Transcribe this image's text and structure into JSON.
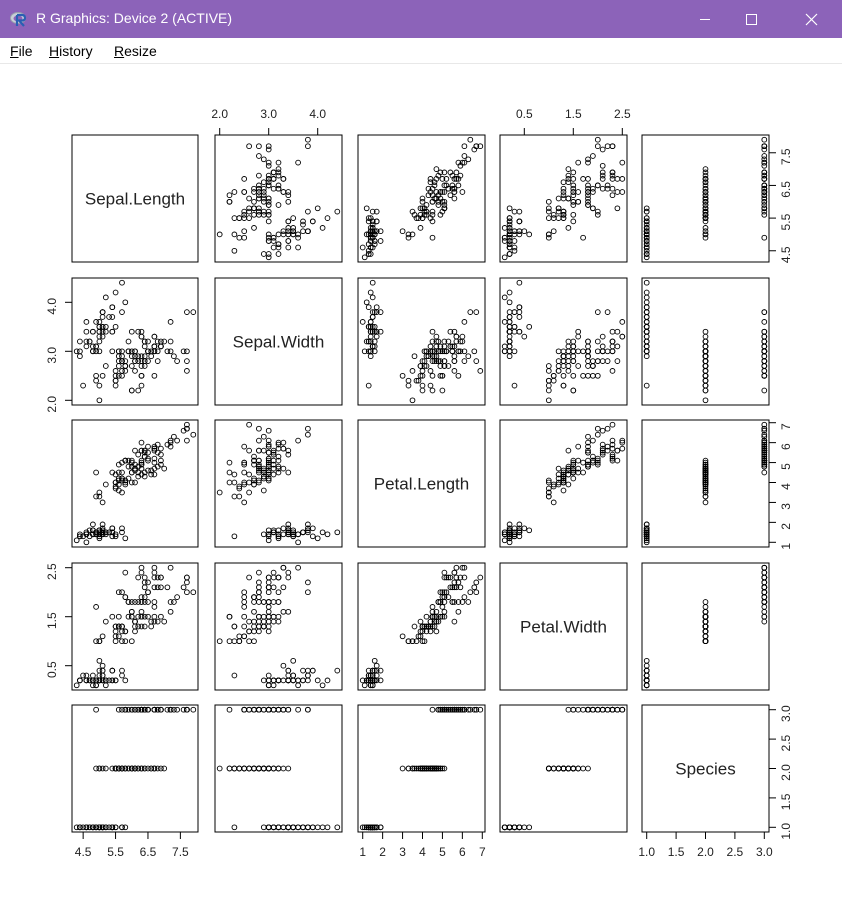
{
  "window": {
    "title": "R Graphics: Device 2 (ACTIVE)",
    "icon": "r-logo-icon",
    "controls": [
      "minimize-icon",
      "maximize-icon",
      "close-icon"
    ],
    "accent": "#8c63b9"
  },
  "menu": [
    {
      "accel": "F",
      "rest": "ile"
    },
    {
      "accel": "H",
      "rest": "istory"
    },
    {
      "accel": "R",
      "rest": "esize"
    }
  ],
  "chart_data": {
    "type": "scatter",
    "kind": "scatterplot matrix",
    "variables": [
      "Sepal.Length",
      "Sepal.Width",
      "Petal.Length",
      "Petal.Width",
      "Species"
    ],
    "ticks": {
      "Sepal.Length": [
        "4.5",
        "5.5",
        "6.5",
        "7.5"
      ],
      "Sepal.Width": [
        "2.0",
        "3.0",
        "4.0"
      ],
      "Petal.Length": [
        "1",
        "2",
        "3",
        "4",
        "5",
        "6",
        "7"
      ],
      "Petal.Width": [
        "0.5",
        "1.5",
        "2.5"
      ],
      "Species": [
        "1.0",
        "1.5",
        "2.0",
        "2.5",
        "3.0"
      ]
    },
    "ranges": {
      "Sepal.Length": [
        4.3,
        7.9
      ],
      "Sepal.Width": [
        2.0,
        4.4
      ],
      "Petal.Length": [
        1.0,
        6.9
      ],
      "Petal.Width": [
        0.1,
        2.5
      ],
      "Species": [
        1,
        3
      ]
    },
    "point_symbol": "open circle",
    "observations": [
      [
        5.1,
        3.5,
        1.4,
        0.2,
        1
      ],
      [
        4.9,
        3.0,
        1.4,
        0.2,
        1
      ],
      [
        4.7,
        3.2,
        1.3,
        0.2,
        1
      ],
      [
        4.6,
        3.1,
        1.5,
        0.2,
        1
      ],
      [
        5.0,
        3.6,
        1.4,
        0.2,
        1
      ],
      [
        5.4,
        3.9,
        1.7,
        0.4,
        1
      ],
      [
        4.6,
        3.4,
        1.4,
        0.3,
        1
      ],
      [
        5.0,
        3.4,
        1.5,
        0.2,
        1
      ],
      [
        4.4,
        2.9,
        1.4,
        0.2,
        1
      ],
      [
        4.9,
        3.1,
        1.5,
        0.1,
        1
      ],
      [
        5.4,
        3.7,
        1.5,
        0.2,
        1
      ],
      [
        4.8,
        3.4,
        1.6,
        0.2,
        1
      ],
      [
        4.8,
        3.0,
        1.4,
        0.1,
        1
      ],
      [
        4.3,
        3.0,
        1.1,
        0.1,
        1
      ],
      [
        5.8,
        4.0,
        1.2,
        0.2,
        1
      ],
      [
        5.7,
        4.4,
        1.5,
        0.4,
        1
      ],
      [
        5.4,
        3.9,
        1.3,
        0.4,
        1
      ],
      [
        5.1,
        3.5,
        1.4,
        0.3,
        1
      ],
      [
        5.7,
        3.8,
        1.7,
        0.3,
        1
      ],
      [
        5.1,
        3.8,
        1.5,
        0.3,
        1
      ],
      [
        5.4,
        3.4,
        1.7,
        0.2,
        1
      ],
      [
        5.1,
        3.7,
        1.5,
        0.4,
        1
      ],
      [
        4.6,
        3.6,
        1.0,
        0.2,
        1
      ],
      [
        5.1,
        3.3,
        1.7,
        0.5,
        1
      ],
      [
        4.8,
        3.4,
        1.9,
        0.2,
        1
      ],
      [
        5.0,
        3.0,
        1.6,
        0.2,
        1
      ],
      [
        5.0,
        3.4,
        1.6,
        0.4,
        1
      ],
      [
        5.2,
        3.5,
        1.5,
        0.2,
        1
      ],
      [
        5.2,
        3.4,
        1.4,
        0.2,
        1
      ],
      [
        4.7,
        3.2,
        1.6,
        0.2,
        1
      ],
      [
        4.8,
        3.1,
        1.6,
        0.2,
        1
      ],
      [
        5.4,
        3.4,
        1.5,
        0.4,
        1
      ],
      [
        5.2,
        4.1,
        1.5,
        0.1,
        1
      ],
      [
        5.5,
        4.2,
        1.4,
        0.2,
        1
      ],
      [
        4.9,
        3.1,
        1.5,
        0.2,
        1
      ],
      [
        5.0,
        3.2,
        1.2,
        0.2,
        1
      ],
      [
        5.5,
        3.5,
        1.3,
        0.2,
        1
      ],
      [
        4.9,
        3.6,
        1.4,
        0.1,
        1
      ],
      [
        4.4,
        3.0,
        1.3,
        0.2,
        1
      ],
      [
        5.1,
        3.4,
        1.5,
        0.2,
        1
      ],
      [
        5.0,
        3.5,
        1.3,
        0.3,
        1
      ],
      [
        4.5,
        2.3,
        1.3,
        0.3,
        1
      ],
      [
        4.4,
        3.2,
        1.3,
        0.2,
        1
      ],
      [
        5.0,
        3.5,
        1.6,
        0.6,
        1
      ],
      [
        5.1,
        3.8,
        1.9,
        0.4,
        1
      ],
      [
        4.8,
        3.0,
        1.4,
        0.3,
        1
      ],
      [
        5.1,
        3.8,
        1.6,
        0.2,
        1
      ],
      [
        4.6,
        3.2,
        1.4,
        0.2,
        1
      ],
      [
        5.3,
        3.7,
        1.5,
        0.2,
        1
      ],
      [
        5.0,
        3.3,
        1.4,
        0.2,
        1
      ],
      [
        7.0,
        3.2,
        4.7,
        1.4,
        2
      ],
      [
        6.4,
        3.2,
        4.5,
        1.5,
        2
      ],
      [
        6.9,
        3.1,
        4.9,
        1.5,
        2
      ],
      [
        5.5,
        2.3,
        4.0,
        1.3,
        2
      ],
      [
        6.5,
        2.8,
        4.6,
        1.5,
        2
      ],
      [
        5.7,
        2.8,
        4.5,
        1.3,
        2
      ],
      [
        6.3,
        3.3,
        4.7,
        1.6,
        2
      ],
      [
        4.9,
        2.4,
        3.3,
        1.0,
        2
      ],
      [
        6.6,
        2.9,
        4.6,
        1.3,
        2
      ],
      [
        5.2,
        2.7,
        3.9,
        1.4,
        2
      ],
      [
        5.0,
        2.0,
        3.5,
        1.0,
        2
      ],
      [
        5.9,
        3.0,
        4.2,
        1.5,
        2
      ],
      [
        6.0,
        2.2,
        4.0,
        1.0,
        2
      ],
      [
        6.1,
        2.9,
        4.7,
        1.4,
        2
      ],
      [
        5.6,
        2.9,
        3.6,
        1.3,
        2
      ],
      [
        6.7,
        3.1,
        4.4,
        1.4,
        2
      ],
      [
        5.6,
        3.0,
        4.5,
        1.5,
        2
      ],
      [
        5.8,
        2.7,
        4.1,
        1.0,
        2
      ],
      [
        6.2,
        2.2,
        4.5,
        1.5,
        2
      ],
      [
        5.6,
        2.5,
        3.9,
        1.1,
        2
      ],
      [
        5.9,
        3.2,
        4.8,
        1.8,
        2
      ],
      [
        6.1,
        2.8,
        4.0,
        1.3,
        2
      ],
      [
        6.3,
        2.5,
        4.9,
        1.5,
        2
      ],
      [
        6.1,
        2.8,
        4.7,
        1.2,
        2
      ],
      [
        6.4,
        2.9,
        4.3,
        1.3,
        2
      ],
      [
        6.6,
        3.0,
        4.4,
        1.4,
        2
      ],
      [
        6.8,
        2.8,
        4.8,
        1.4,
        2
      ],
      [
        6.7,
        3.0,
        5.0,
        1.7,
        2
      ],
      [
        6.0,
        2.9,
        4.5,
        1.5,
        2
      ],
      [
        5.7,
        2.6,
        3.5,
        1.0,
        2
      ],
      [
        5.5,
        2.4,
        3.8,
        1.1,
        2
      ],
      [
        5.5,
        2.4,
        3.7,
        1.0,
        2
      ],
      [
        5.8,
        2.7,
        3.9,
        1.2,
        2
      ],
      [
        6.0,
        2.7,
        5.1,
        1.6,
        2
      ],
      [
        5.4,
        3.0,
        4.5,
        1.5,
        2
      ],
      [
        6.0,
        3.4,
        4.5,
        1.6,
        2
      ],
      [
        6.7,
        3.1,
        4.7,
        1.5,
        2
      ],
      [
        6.3,
        2.3,
        4.4,
        1.3,
        2
      ],
      [
        5.6,
        3.0,
        4.1,
        1.3,
        2
      ],
      [
        5.5,
        2.5,
        4.0,
        1.3,
        2
      ],
      [
        5.5,
        2.6,
        4.4,
        1.2,
        2
      ],
      [
        6.1,
        3.0,
        4.6,
        1.4,
        2
      ],
      [
        5.8,
        2.6,
        4.0,
        1.2,
        2
      ],
      [
        5.0,
        2.3,
        3.3,
        1.0,
        2
      ],
      [
        5.6,
        2.7,
        4.2,
        1.3,
        2
      ],
      [
        5.7,
        3.0,
        4.2,
        1.2,
        2
      ],
      [
        5.7,
        2.9,
        4.2,
        1.3,
        2
      ],
      [
        6.2,
        2.9,
        4.3,
        1.3,
        2
      ],
      [
        5.1,
        2.5,
        3.0,
        1.1,
        2
      ],
      [
        5.7,
        2.8,
        4.1,
        1.3,
        2
      ],
      [
        6.3,
        3.3,
        6.0,
        2.5,
        3
      ],
      [
        5.8,
        2.7,
        5.1,
        1.9,
        3
      ],
      [
        7.1,
        3.0,
        5.9,
        2.1,
        3
      ],
      [
        6.3,
        2.9,
        5.6,
        1.8,
        3
      ],
      [
        6.5,
        3.0,
        5.8,
        2.2,
        3
      ],
      [
        7.6,
        3.0,
        6.6,
        2.1,
        3
      ],
      [
        4.9,
        2.5,
        4.5,
        1.7,
        3
      ],
      [
        7.3,
        2.9,
        6.3,
        1.8,
        3
      ],
      [
        6.7,
        2.5,
        5.8,
        1.8,
        3
      ],
      [
        7.2,
        3.6,
        6.1,
        2.5,
        3
      ],
      [
        6.5,
        3.2,
        5.1,
        2.0,
        3
      ],
      [
        6.4,
        2.7,
        5.3,
        1.9,
        3
      ],
      [
        6.8,
        3.0,
        5.5,
        2.1,
        3
      ],
      [
        5.7,
        2.5,
        5.0,
        2.0,
        3
      ],
      [
        5.8,
        2.8,
        5.1,
        2.4,
        3
      ],
      [
        6.4,
        3.2,
        5.3,
        2.3,
        3
      ],
      [
        6.5,
        3.0,
        5.5,
        1.8,
        3
      ],
      [
        7.7,
        3.8,
        6.7,
        2.2,
        3
      ],
      [
        7.7,
        2.6,
        6.9,
        2.3,
        3
      ],
      [
        6.0,
        2.2,
        5.0,
        1.5,
        3
      ],
      [
        6.9,
        3.2,
        5.7,
        2.3,
        3
      ],
      [
        5.6,
        2.8,
        4.9,
        2.0,
        3
      ],
      [
        7.7,
        2.8,
        6.7,
        2.0,
        3
      ],
      [
        6.3,
        2.7,
        4.9,
        1.8,
        3
      ],
      [
        6.7,
        3.3,
        5.7,
        2.1,
        3
      ],
      [
        7.2,
        3.2,
        6.0,
        1.8,
        3
      ],
      [
        6.2,
        2.8,
        4.8,
        1.8,
        3
      ],
      [
        6.1,
        3.0,
        4.9,
        1.8,
        3
      ],
      [
        6.4,
        2.8,
        5.6,
        2.1,
        3
      ],
      [
        7.2,
        3.0,
        5.8,
        1.6,
        3
      ],
      [
        7.4,
        2.8,
        6.1,
        1.9,
        3
      ],
      [
        7.9,
        3.8,
        6.4,
        2.0,
        3
      ],
      [
        6.4,
        2.8,
        5.6,
        2.2,
        3
      ],
      [
        6.3,
        2.8,
        5.1,
        1.5,
        3
      ],
      [
        6.1,
        2.6,
        5.6,
        1.4,
        3
      ],
      [
        7.7,
        3.0,
        6.1,
        2.3,
        3
      ],
      [
        6.3,
        3.4,
        5.6,
        2.4,
        3
      ],
      [
        6.4,
        3.1,
        5.5,
        1.8,
        3
      ],
      [
        6.0,
        3.0,
        4.8,
        1.8,
        3
      ],
      [
        6.9,
        3.1,
        5.4,
        2.1,
        3
      ],
      [
        6.7,
        3.1,
        5.6,
        2.4,
        3
      ],
      [
        6.9,
        3.1,
        5.1,
        2.3,
        3
      ],
      [
        5.8,
        2.7,
        5.1,
        1.9,
        3
      ],
      [
        6.8,
        3.2,
        5.9,
        2.3,
        3
      ],
      [
        6.7,
        3.3,
        5.7,
        2.5,
        3
      ],
      [
        6.7,
        3.0,
        5.2,
        2.3,
        3
      ],
      [
        6.3,
        2.5,
        5.0,
        1.9,
        3
      ],
      [
        6.5,
        3.0,
        5.2,
        2.0,
        3
      ],
      [
        6.2,
        3.4,
        5.4,
        2.3,
        3
      ],
      [
        5.9,
        3.0,
        5.1,
        1.8,
        3
      ]
    ]
  }
}
